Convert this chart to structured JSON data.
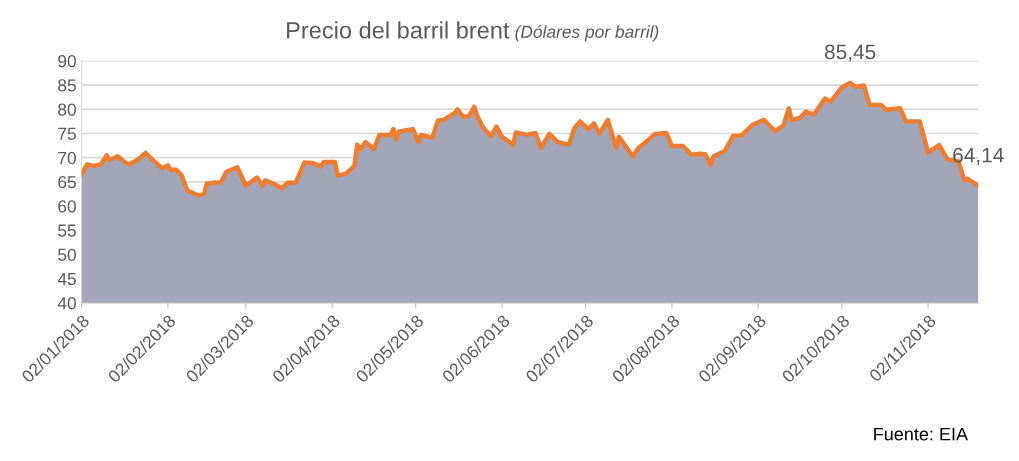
{
  "chart_data": {
    "type": "area",
    "title": "Precio del barril brent",
    "subtitle": "(Dólares por barril)",
    "x": [
      "2018-01-02",
      "2018-01-04",
      "2018-01-06",
      "2018-01-09",
      "2018-01-11",
      "2018-01-12",
      "2018-01-15",
      "2018-01-17",
      "2018-01-19",
      "2018-01-22",
      "2018-01-25",
      "2018-01-28",
      "2018-01-31",
      "2018-02-02",
      "2018-02-03",
      "2018-02-05",
      "2018-02-07",
      "2018-02-09",
      "2018-02-13",
      "2018-02-15",
      "2018-02-16",
      "2018-02-19",
      "2018-02-21",
      "2018-02-23",
      "2018-02-27",
      "2018-03-02",
      "2018-03-06",
      "2018-03-08",
      "2018-03-09",
      "2018-03-12",
      "2018-03-15",
      "2018-03-17",
      "2018-03-20",
      "2018-03-23",
      "2018-03-26",
      "2018-03-29",
      "2018-03-30",
      "2018-04-03",
      "2018-04-04",
      "2018-04-07",
      "2018-04-10",
      "2018-04-11",
      "2018-04-12",
      "2018-04-14",
      "2018-04-17",
      "2018-04-19",
      "2018-04-23",
      "2018-04-24",
      "2018-04-25",
      "2018-04-26",
      "2018-05-01",
      "2018-05-03",
      "2018-05-04",
      "2018-05-08",
      "2018-05-10",
      "2018-05-12",
      "2018-05-16",
      "2018-05-17",
      "2018-05-19",
      "2018-05-21",
      "2018-05-23",
      "2018-05-24",
      "2018-05-26",
      "2018-05-29",
      "2018-05-31",
      "2018-06-02",
      "2018-06-06",
      "2018-06-07",
      "2018-06-11",
      "2018-06-14",
      "2018-06-16",
      "2018-06-19",
      "2018-06-22",
      "2018-06-26",
      "2018-06-28",
      "2018-06-30",
      "2018-07-03",
      "2018-07-05",
      "2018-07-07",
      "2018-07-10",
      "2018-07-13",
      "2018-07-14",
      "2018-07-19",
      "2018-07-21",
      "2018-07-24",
      "2018-07-27",
      "2018-07-31",
      "2018-08-02",
      "2018-08-06",
      "2018-08-09",
      "2018-08-12",
      "2018-08-14",
      "2018-08-16",
      "2018-08-17",
      "2018-08-21",
      "2018-08-24",
      "2018-08-27",
      "2018-08-31",
      "2018-09-04",
      "2018-09-08",
      "2018-09-11",
      "2018-09-13",
      "2018-09-14",
      "2018-09-17",
      "2018-09-19",
      "2018-09-22",
      "2018-09-26",
      "2018-09-28",
      "2018-10-02",
      "2018-10-05",
      "2018-10-07",
      "2018-10-10",
      "2018-10-12",
      "2018-10-16",
      "2018-10-18",
      "2018-10-23",
      "2018-10-25",
      "2018-10-30",
      "2018-11-02",
      "2018-11-06",
      "2018-11-09",
      "2018-11-13",
      "2018-11-15",
      "2018-11-16",
      "2018-11-20"
    ],
    "series": [
      {
        "color": "#ed7d31",
        "values": [
          66.6,
          68.6,
          68.3,
          68.6,
          70.5,
          69.5,
          70.3,
          69.3,
          68.6,
          69.5,
          71.0,
          69.3,
          67.8,
          68.4,
          67.5,
          67.5,
          66.3,
          63.2,
          62.2,
          62.5,
          64.6,
          64.9,
          64.8,
          67.1,
          68.0,
          64.2,
          65.9,
          64.2,
          65.3,
          64.6,
          63.7,
          64.8,
          64.9,
          69.0,
          68.9,
          68.2,
          69.1,
          69.1,
          66.3,
          66.7,
          68.3,
          72.7,
          71.7,
          73.2,
          71.8,
          74.7,
          74.7,
          75.9,
          73.8,
          75.4,
          75.9,
          73.2,
          74.7,
          74.1,
          77.7,
          77.8,
          79.2,
          80.0,
          78.5,
          78.5,
          80.5,
          78.8,
          76.4,
          74.4,
          76.4,
          74.3,
          72.7,
          75.2,
          74.7,
          75.1,
          72.0,
          74.9,
          73.2,
          72.7,
          76.1,
          77.5,
          75.9,
          77.1,
          75.0,
          77.8,
          72.0,
          74.3,
          70.3,
          72.0,
          73.4,
          74.9,
          75.1,
          72.4,
          72.4,
          70.6,
          70.8,
          70.7,
          68.5,
          70.3,
          71.4,
          74.5,
          74.6,
          76.8,
          77.8,
          75.5,
          76.6,
          80.2,
          77.8,
          78.2,
          79.5,
          78.9,
          82.2,
          81.6,
          84.5,
          85.45,
          84.6,
          84.9,
          80.9,
          80.9,
          79.9,
          80.2,
          77.5,
          77.5,
          71.1,
          72.6,
          69.6,
          69.2,
          65.3,
          65.7,
          64.14
        ]
      }
    ],
    "xlim": [
      "2018-01-02",
      "2018-11-20"
    ],
    "xticks": [
      {
        "value": "2018-01-02",
        "label": "02/01/2018"
      },
      {
        "value": "2018-02-02",
        "label": "02/02/2018"
      },
      {
        "value": "2018-03-02",
        "label": "02/03/2018"
      },
      {
        "value": "2018-04-02",
        "label": "02/04/2018"
      },
      {
        "value": "2018-05-02",
        "label": "02/05/2018"
      },
      {
        "value": "2018-06-02",
        "label": "02/06/2018"
      },
      {
        "value": "2018-07-02",
        "label": "02/07/2018"
      },
      {
        "value": "2018-08-02",
        "label": "02/08/2018"
      },
      {
        "value": "2018-09-02",
        "label": "02/09/2018"
      },
      {
        "value": "2018-10-02",
        "label": "02/10/2018"
      },
      {
        "value": "2018-11-02",
        "label": "02/11/2018"
      }
    ],
    "ylim": [
      40,
      90
    ],
    "yticks": [
      40,
      45,
      50,
      55,
      60,
      65,
      70,
      75,
      80,
      85,
      90
    ],
    "grid": "y",
    "annotations": [
      {
        "text": "85,45",
        "x": "2018-10-05",
        "y": 85.45
      },
      {
        "text": "64,14",
        "x": "2018-11-20",
        "y": 64.14
      },
      "Fuente: EIA"
    ]
  }
}
